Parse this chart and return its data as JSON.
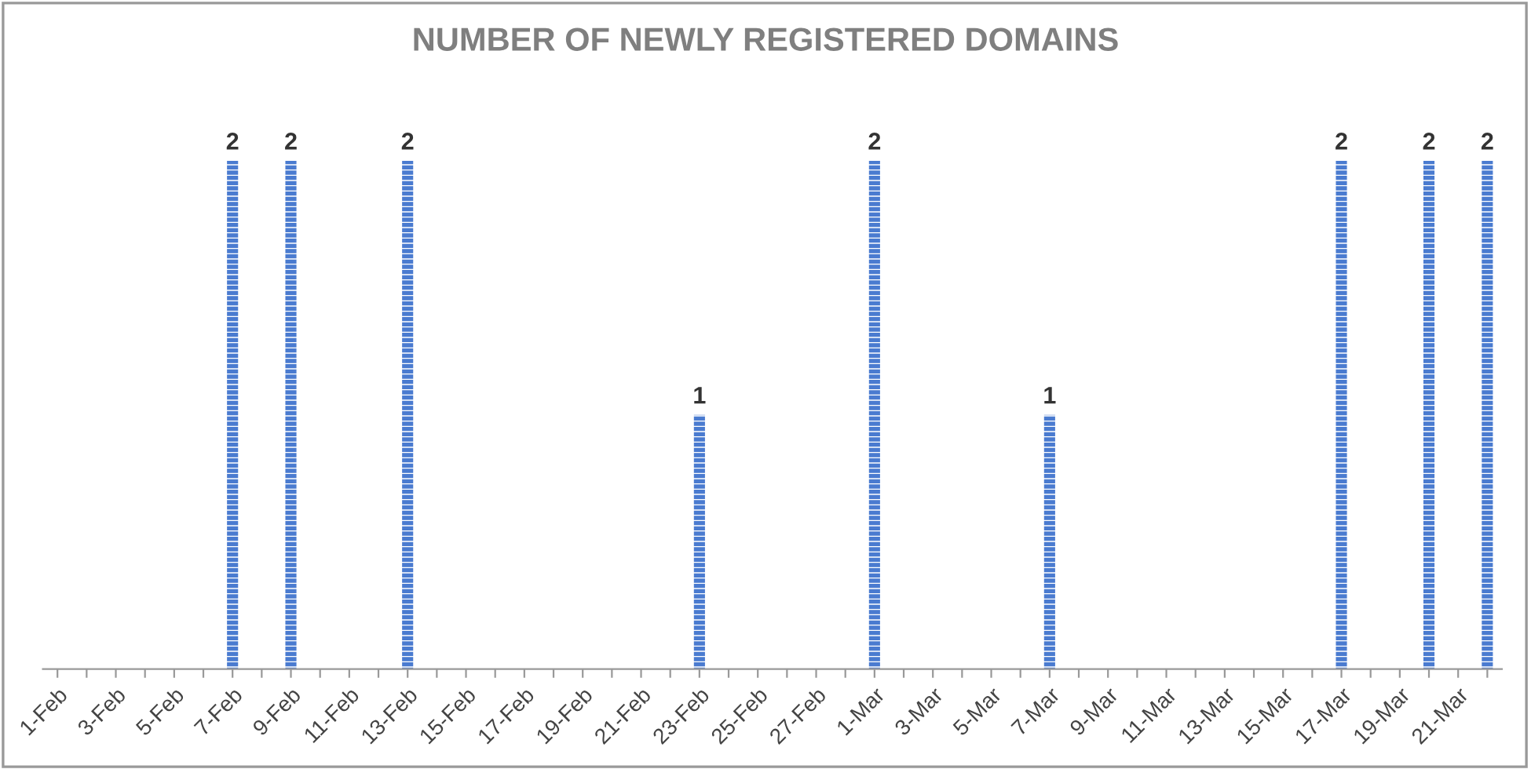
{
  "chart_data": {
    "type": "bar",
    "title": "NUMBER OF NEWLY REGISTERED DOMAINS",
    "categories": [
      "1-Feb",
      null,
      "3-Feb",
      null,
      "5-Feb",
      null,
      "7-Feb",
      null,
      "9-Feb",
      null,
      "11-Feb",
      null,
      "13-Feb",
      null,
      "15-Feb",
      null,
      "17-Feb",
      null,
      "19-Feb",
      null,
      "21-Feb",
      null,
      "23-Feb",
      null,
      "25-Feb",
      null,
      "27-Feb",
      null,
      "1-Mar",
      null,
      "3-Mar",
      null,
      "5-Mar",
      null,
      "7-Mar",
      null,
      "9-Mar",
      null,
      "11-Mar",
      null,
      "13-Mar",
      null,
      "15-Mar",
      null,
      "17-Mar",
      null,
      "19-Mar",
      null,
      "21-Mar",
      null
    ],
    "values": [
      0,
      0,
      0,
      0,
      0,
      0,
      2,
      0,
      2,
      0,
      0,
      0,
      2,
      0,
      0,
      0,
      0,
      0,
      0,
      0,
      0,
      0,
      1,
      0,
      0,
      0,
      0,
      0,
      2,
      0,
      0,
      0,
      0,
      0,
      1,
      0,
      0,
      0,
      0,
      0,
      0,
      0,
      0,
      0,
      2,
      0,
      0,
      2,
      0,
      2
    ],
    "value_labels": [
      null,
      null,
      null,
      null,
      null,
      null,
      "2",
      null,
      "2",
      null,
      null,
      null,
      "2",
      null,
      null,
      null,
      null,
      null,
      null,
      null,
      null,
      null,
      "1",
      null,
      null,
      null,
      null,
      null,
      "2",
      null,
      null,
      null,
      null,
      null,
      "1",
      null,
      null,
      null,
      null,
      null,
      null,
      null,
      null,
      null,
      "2",
      null,
      null,
      "2",
      null,
      "2"
    ],
    "color": "#4a7bd0",
    "grid": false,
    "legend": false
  }
}
